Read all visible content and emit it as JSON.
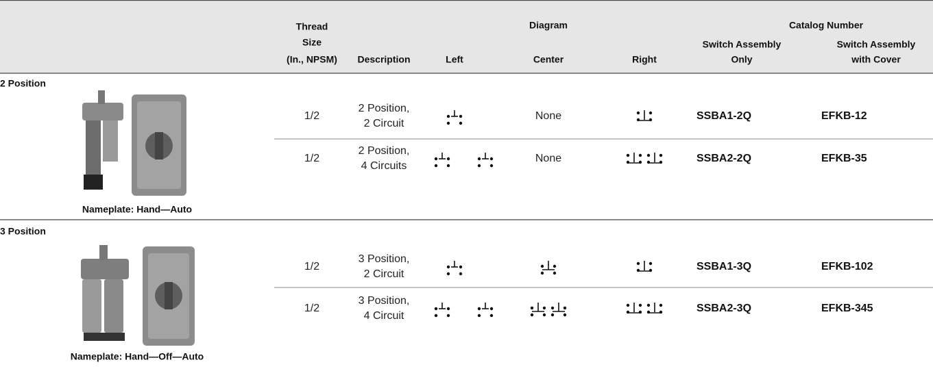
{
  "header": {
    "thread_size": [
      "Thread",
      "Size",
      "(In., NPSM)"
    ],
    "description": "Description",
    "diagram": "Diagram",
    "left": "Left",
    "center": "Center",
    "right": "Right",
    "catalog_number": "Catalog Number",
    "switch_only": [
      "Switch Assembly",
      "Only"
    ],
    "switch_cover": [
      "Switch Assembly",
      "with Cover"
    ]
  },
  "sections": [
    {
      "title": "2 Position",
      "nameplate": "Nameplate: Hand—Auto",
      "rows": [
        {
          "thread_size": "1/2",
          "description": [
            "2 Position,",
            "2 Circuit"
          ],
          "center_diagram": "None",
          "switch_only": "SSBA1-2Q",
          "switch_cover": "EFKB-12"
        },
        {
          "thread_size": "1/2",
          "description": [
            "2 Position,",
            "4 Circuits"
          ],
          "center_diagram": "None",
          "switch_only": "SSBA2-2Q",
          "switch_cover": "EFKB-35"
        }
      ]
    },
    {
      "title": "3 Position",
      "nameplate": "Nameplate: Hand—Off—Auto",
      "rows": [
        {
          "thread_size": "1/2",
          "description": [
            "3 Position,",
            "2 Circuit"
          ],
          "switch_only": "SSBA1-3Q",
          "switch_cover": "EFKB-102"
        },
        {
          "thread_size": "1/2",
          "description": [
            "3 Position,",
            "4 Circuit"
          ],
          "switch_only": "SSBA2-3Q",
          "switch_cover": "EFKB-345"
        }
      ]
    }
  ]
}
